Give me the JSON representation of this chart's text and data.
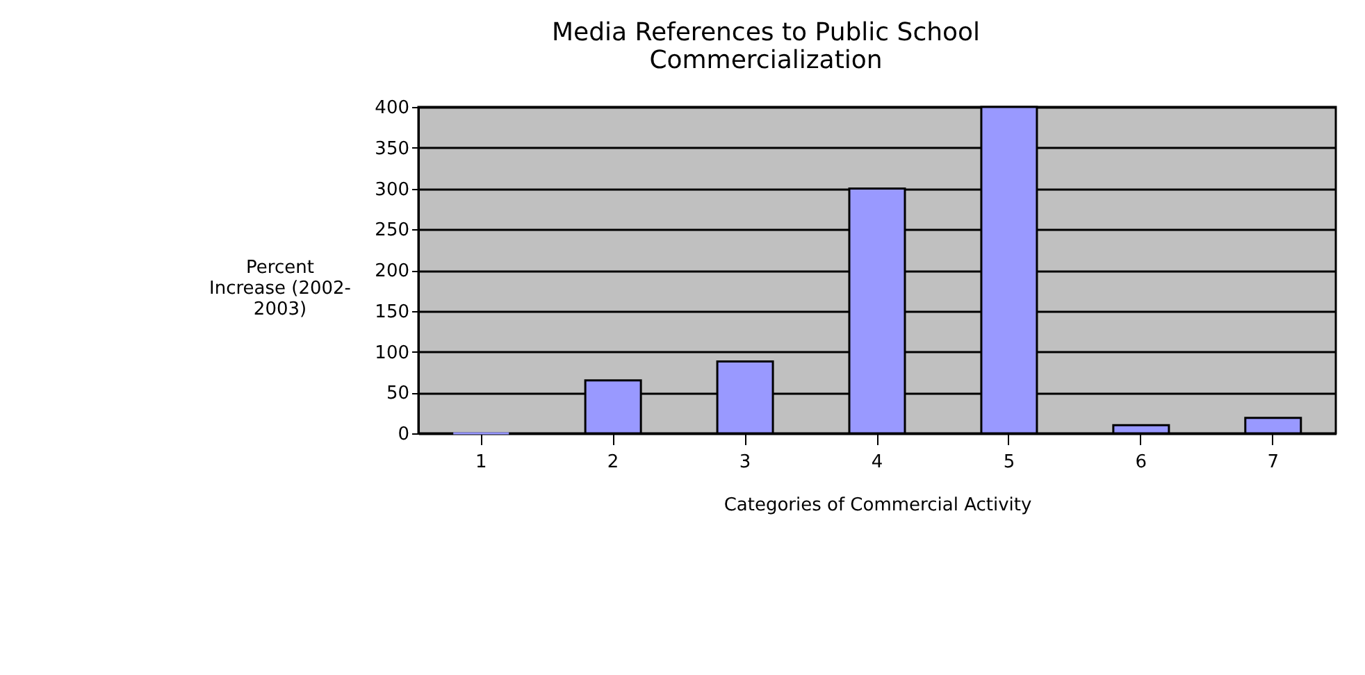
{
  "chart_data": {
    "type": "bar",
    "title": "Media References to Public School Commercialization",
    "xlabel": "Categories of Commercial Activity",
    "ylabel": "Percent Increase (2002-2003)",
    "categories": [
      "1",
      "2",
      "3",
      "4",
      "5",
      "6",
      "7"
    ],
    "values": [
      0,
      65,
      88,
      300,
      400,
      10,
      19
    ],
    "color": "#9999ff",
    "ylim": [
      0,
      400
    ],
    "yticks": [
      0,
      50,
      100,
      150,
      200,
      250,
      300,
      350,
      400
    ],
    "grid": true
  }
}
